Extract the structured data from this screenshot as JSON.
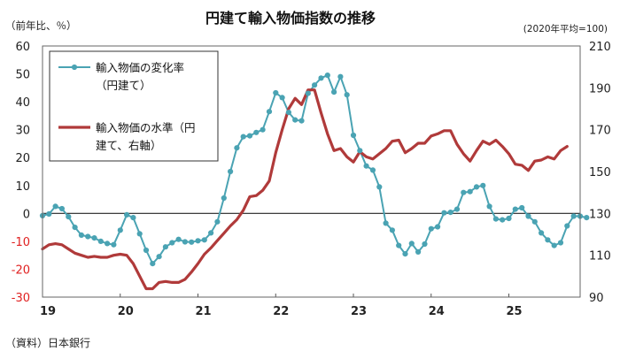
{
  "chart_data": {
    "type": "line",
    "title": "円建て輸入物価指数の推移",
    "left_unit": "（前年比、％）",
    "right_unit": "(2020年平均=100)",
    "source": "（資料）日本銀行",
    "y_left": {
      "min": -30,
      "max": 60,
      "ticks": [
        60,
        50,
        40,
        30,
        20,
        10,
        0,
        -10,
        -20,
        -30
      ]
    },
    "y_right": {
      "min": 90,
      "max": 210,
      "ticks": [
        210,
        190,
        170,
        150,
        130,
        110,
        90
      ]
    },
    "x_range": [
      2019.0,
      2025.917
    ],
    "x_ticks": [
      {
        "label": "19",
        "year": 2019
      },
      {
        "label": "20",
        "year": 2020
      },
      {
        "label": "21",
        "year": 2021
      },
      {
        "label": "22",
        "year": 2022
      },
      {
        "label": "23",
        "year": 2023
      },
      {
        "label": "24",
        "year": 2024
      },
      {
        "label": "25",
        "year": 2025
      }
    ],
    "legend": [
      {
        "label_lines": [
          "輸入物価の変化率",
          "（円建て）"
        ],
        "series": "yoy"
      },
      {
        "label_lines": [
          "輸入物価の水準（円",
          "建て、右軸）"
        ],
        "series": "level"
      }
    ],
    "series": [
      {
        "name": "輸入物価の変化率（円建て）",
        "key": "yoy",
        "axis": "left",
        "color": "#4aa3b3",
        "start": 2019.0,
        "step_months": 1,
        "values": [
          -0.8,
          -0.2,
          2.5,
          1.7,
          -1.2,
          -5.0,
          -7.8,
          -8.3,
          -8.8,
          -10.0,
          -10.8,
          -11.2,
          -6.0,
          -0.5,
          -1.5,
          -7.3,
          -13.2,
          -18.0,
          -15.5,
          -12.0,
          -10.5,
          -9.3,
          -10.2,
          -10.3,
          -9.8,
          -9.5,
          -7.0,
          -3.0,
          5.5,
          15.0,
          23.5,
          27.5,
          27.8,
          29.0,
          30.0,
          36.5,
          43.2,
          41.5,
          36.2,
          33.5,
          33.2,
          43.0,
          46.0,
          48.5,
          49.5,
          43.5,
          49.0,
          42.5,
          28.0,
          22.5,
          17.0,
          15.5,
          9.5,
          -3.5,
          -6.0,
          -11.5,
          -14.5,
          -10.8,
          -13.8,
          -11.0,
          -5.5,
          -4.8,
          0.2,
          0.4,
          1.5,
          7.5,
          7.8,
          9.5,
          10.0,
          2.5,
          -2.0,
          -2.3,
          -1.8,
          1.5,
          2.0,
          -1.0,
          -3.0,
          -7.0,
          -9.5,
          -11.5,
          -10.5,
          -4.5,
          -1.0,
          -1.0,
          -1.5
        ]
      },
      {
        "name": "輸入物価の水準（円建て、右軸）",
        "key": "level",
        "axis": "right",
        "color": "#b03a3a",
        "start": 2019.0,
        "step_months": 1,
        "values": [
          113,
          115,
          115.5,
          115,
          113,
          111,
          110,
          109,
          109.5,
          109,
          109,
          110,
          110.5,
          110,
          106,
          100,
          94,
          94,
          97,
          97.5,
          97,
          97,
          98.5,
          102,
          106,
          110.5,
          113.5,
          117,
          120.5,
          124,
          127,
          131.5,
          138,
          138.5,
          141,
          145.5,
          159,
          170,
          180,
          185,
          182,
          189,
          189,
          178,
          168,
          160,
          161,
          157,
          154.5,
          159.5,
          157,
          156,
          158.5,
          161,
          164.5,
          165,
          159,
          161,
          163.5,
          163.5,
          167,
          168,
          169.5,
          169.5,
          163,
          158.5,
          155,
          160,
          164.5,
          163,
          165,
          162,
          158.5,
          153.5,
          153,
          150.5,
          155,
          155.5,
          157,
          156,
          160,
          162
        ]
      }
    ]
  }
}
